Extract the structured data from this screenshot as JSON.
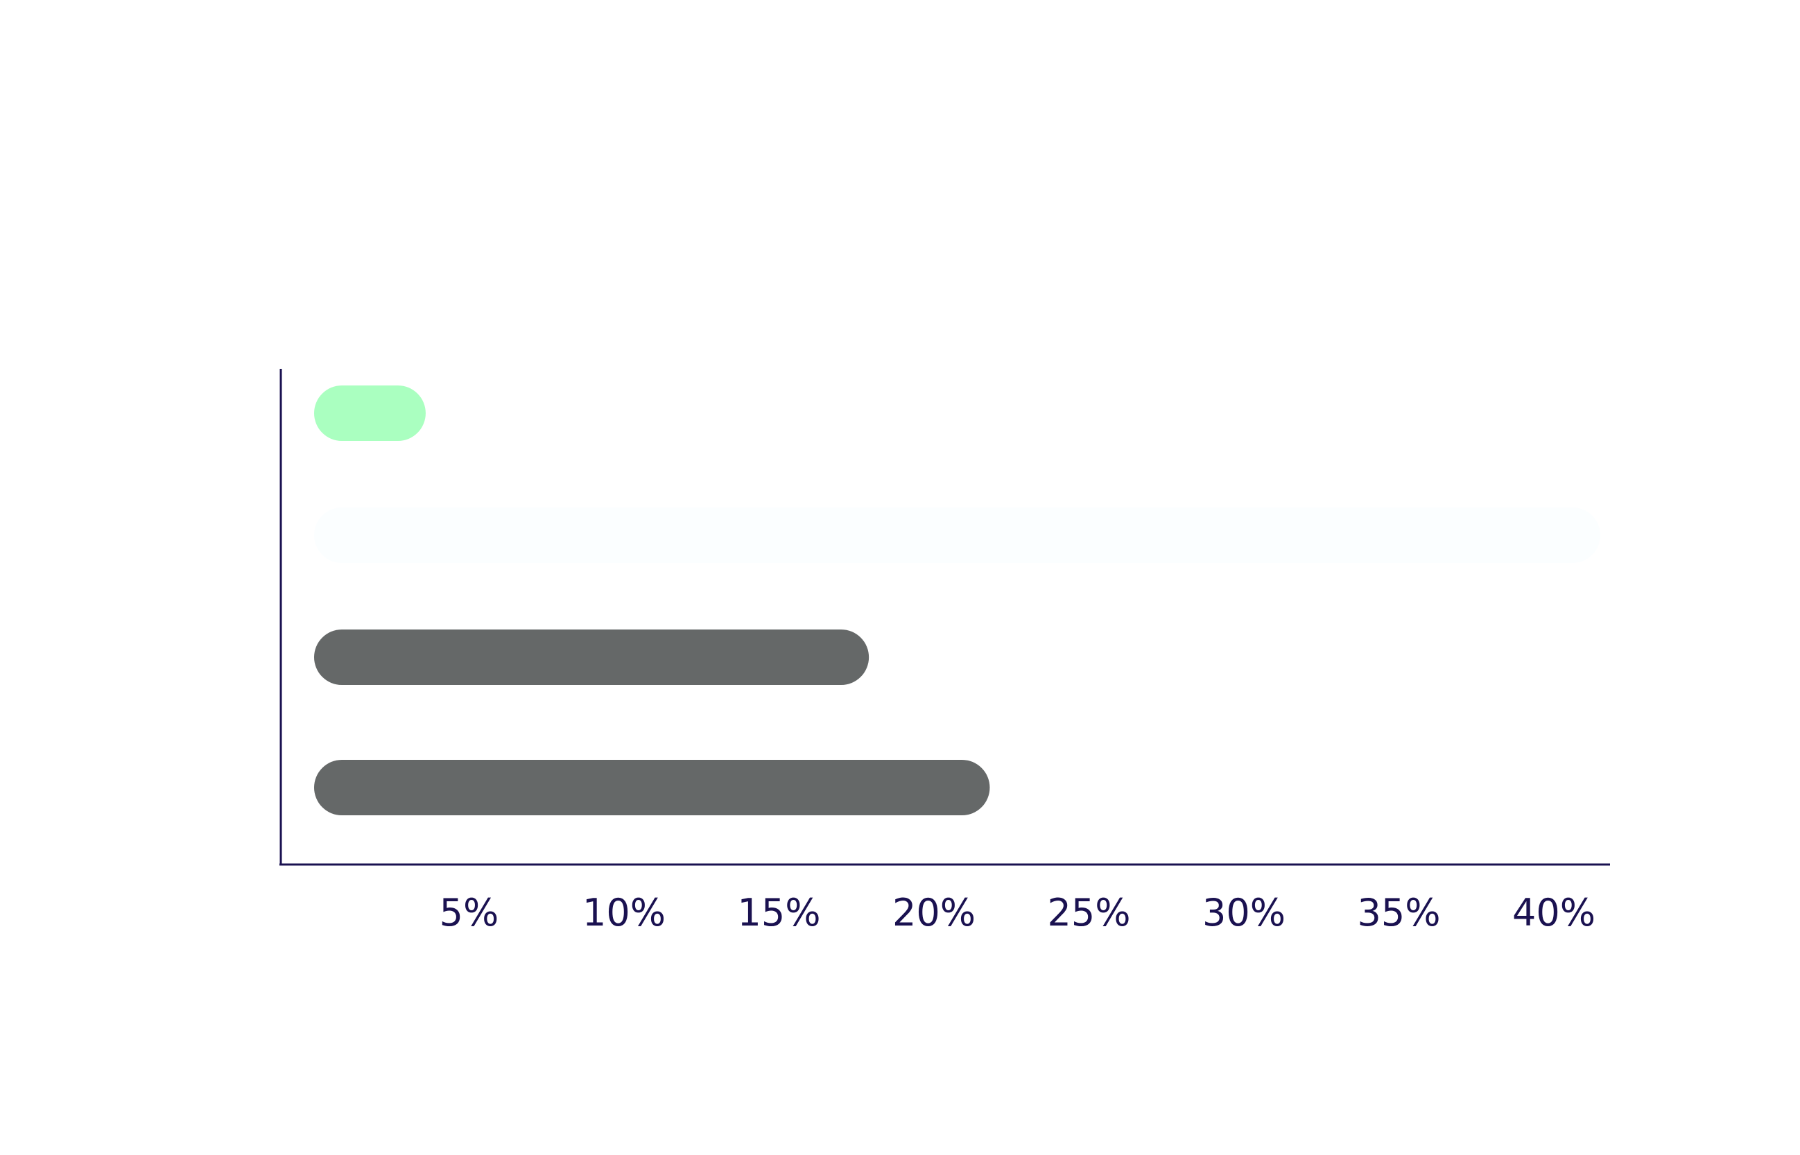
{
  "chart_data": {
    "type": "bar",
    "orientation": "horizontal",
    "title": "",
    "xlabel": "",
    "ylabel": "",
    "x_ticks": [
      {
        "value": 5,
        "label": "5%"
      },
      {
        "value": 10,
        "label": "10%"
      },
      {
        "value": 15,
        "label": "15%"
      },
      {
        "value": 20,
        "label": "20%"
      },
      {
        "value": 25,
        "label": "25%"
      },
      {
        "value": 30,
        "label": "30%"
      },
      {
        "value": 35,
        "label": "35%"
      },
      {
        "value": 40,
        "label": "40%"
      }
    ],
    "xlim": [
      0,
      44
    ],
    "grid": false,
    "legend": "none",
    "bars": [
      {
        "value": 3.6,
        "color": "#aaffc0"
      },
      {
        "value": 41.5,
        "color": "#fbfeff"
      },
      {
        "value": 17.9,
        "color": "#656868"
      },
      {
        "value": 21.8,
        "color": "#656868"
      }
    ],
    "axis_color": "#1a1150",
    "tick_label_color": "#1a1150"
  }
}
